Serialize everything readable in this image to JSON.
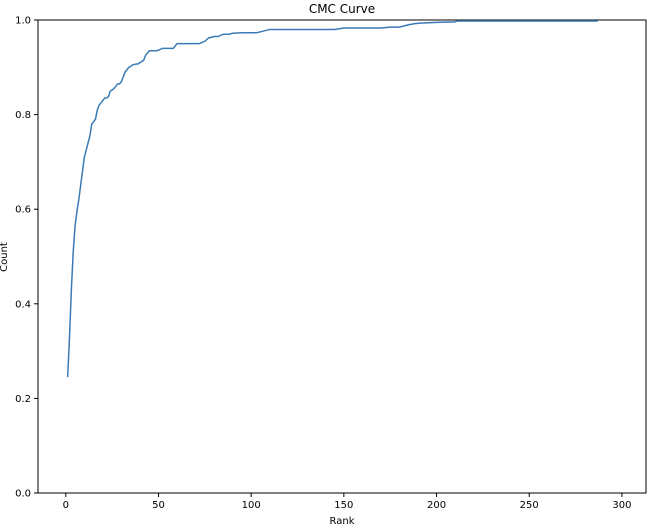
{
  "chart_data": {
    "type": "line",
    "title": "CMC Curve",
    "xlabel": "Rank",
    "ylabel": "Count",
    "xlim": [
      -15,
      313
    ],
    "ylim": [
      0.0,
      1.0
    ],
    "xticks": [
      0,
      50,
      100,
      150,
      200,
      250,
      300
    ],
    "xtick_labels": [
      "0",
      "50",
      "100",
      "150",
      "200",
      "250",
      "300"
    ],
    "yticks": [
      0.0,
      0.2,
      0.4,
      0.6,
      0.8,
      1.0
    ],
    "ytick_labels": [
      "0.0",
      "0.2",
      "0.4",
      "0.6",
      "0.8",
      "1.0"
    ],
    "grid": false,
    "line_color": "#3b7bb5",
    "series": [
      {
        "x": [
          1,
          2,
          3,
          4,
          5,
          6,
          7,
          8,
          9,
          10,
          11,
          12,
          13,
          14,
          15,
          16,
          17,
          18,
          19,
          20,
          21,
          22,
          23,
          24,
          25,
          26,
          27,
          28,
          29,
          30,
          31,
          32,
          33,
          34,
          35,
          36,
          37,
          38,
          39,
          40,
          41,
          42,
          43,
          44,
          45,
          46,
          47,
          48,
          49,
          50,
          52,
          54,
          56,
          58,
          60,
          65,
          70,
          72,
          75,
          77,
          80,
          82,
          85,
          88,
          90,
          95,
          100,
          103,
          105,
          110,
          120,
          130,
          140,
          145,
          150,
          160,
          170,
          175,
          180,
          185,
          188,
          190,
          200,
          210,
          211,
          220,
          230,
          240,
          250,
          260,
          270,
          280,
          287
        ],
        "y": [
          0.245,
          0.33,
          0.43,
          0.51,
          0.565,
          0.595,
          0.62,
          0.65,
          0.68,
          0.71,
          0.725,
          0.74,
          0.755,
          0.78,
          0.785,
          0.79,
          0.81,
          0.82,
          0.825,
          0.83,
          0.835,
          0.835,
          0.838,
          0.85,
          0.852,
          0.855,
          0.86,
          0.865,
          0.865,
          0.87,
          0.88,
          0.89,
          0.895,
          0.9,
          0.902,
          0.905,
          0.906,
          0.907,
          0.907,
          0.91,
          0.912,
          0.915,
          0.925,
          0.93,
          0.935,
          0.935,
          0.935,
          0.935,
          0.935,
          0.936,
          0.94,
          0.94,
          0.94,
          0.94,
          0.95,
          0.95,
          0.95,
          0.95,
          0.955,
          0.962,
          0.965,
          0.965,
          0.97,
          0.97,
          0.972,
          0.973,
          0.973,
          0.973,
          0.975,
          0.98,
          0.98,
          0.98,
          0.98,
          0.98,
          0.983,
          0.983,
          0.983,
          0.985,
          0.985,
          0.99,
          0.992,
          0.993,
          0.995,
          0.996,
          0.998,
          0.998,
          0.998,
          0.998,
          0.998,
          0.998,
          0.998,
          0.998,
          0.998
        ]
      }
    ]
  }
}
